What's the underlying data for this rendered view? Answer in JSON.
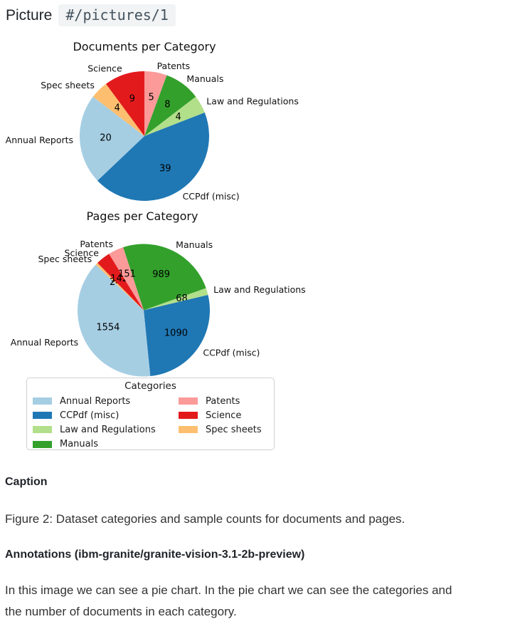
{
  "header": {
    "title": "Picture",
    "code": "#/pictures/1"
  },
  "chart_data": [
    {
      "type": "pie",
      "title": "Documents per Category",
      "categories": [
        "Patents",
        "Manuals",
        "Law and Regulations",
        "CCPdf (misc)",
        "Annual Reports",
        "Spec sheets",
        "Science"
      ],
      "values": [
        5,
        8,
        4,
        39,
        20,
        4,
        9
      ],
      "colors": [
        "#fb9a99",
        "#33a02c",
        "#b2df8a",
        "#1f78b4",
        "#a6cee3",
        "#fdbf6f",
        "#e31a1c"
      ],
      "start_deg": 0,
      "direction": "clockwise",
      "value_label_style": "absolute count inside wedge",
      "category_label_style": "name outside wedge"
    },
    {
      "type": "pie",
      "title": "Pages per Category",
      "categories": [
        "Manuals",
        "Law and Regulations",
        "CCPdf (misc)",
        "Annual Reports",
        "Spec sheets",
        "Science",
        "Patents"
      ],
      "values": [
        989,
        68,
        1090,
        1554,
        24,
        142,
        151
      ],
      "colors": [
        "#33a02c",
        "#b2df8a",
        "#1f78b4",
        "#a6cee3",
        "#fdbf6f",
        "#e31a1c",
        "#fb9a99"
      ],
      "start_deg": -18.1,
      "direction": "clockwise",
      "value_label_style": "absolute count inside wedge",
      "category_label_style": "name outside wedge"
    }
  ],
  "legend": {
    "title": "Categories",
    "position": "below charts",
    "columns": [
      [
        {
          "label": "Annual Reports",
          "color": "#a6cee3"
        },
        {
          "label": "CCPdf (misc)",
          "color": "#1f78b4"
        },
        {
          "label": "Law and Regulations",
          "color": "#b2df8a"
        },
        {
          "label": "Manuals",
          "color": "#33a02c"
        }
      ],
      [
        {
          "label": "Patents",
          "color": "#fb9a99"
        },
        {
          "label": "Science",
          "color": "#e31a1c"
        },
        {
          "label": "Spec sheets",
          "color": "#fdbf6f"
        }
      ]
    ]
  },
  "caption": {
    "heading": "Caption",
    "text": "Figure 2: Dataset categories and sample counts for documents and pages."
  },
  "annotations": {
    "heading": "Annotations (ibm-granite/granite-vision-3.1-2b-preview)",
    "text_lines": [
      "In this image we can see a pie chart. In the pie chart we can see the categories and",
      "the number of documents in each category."
    ]
  }
}
